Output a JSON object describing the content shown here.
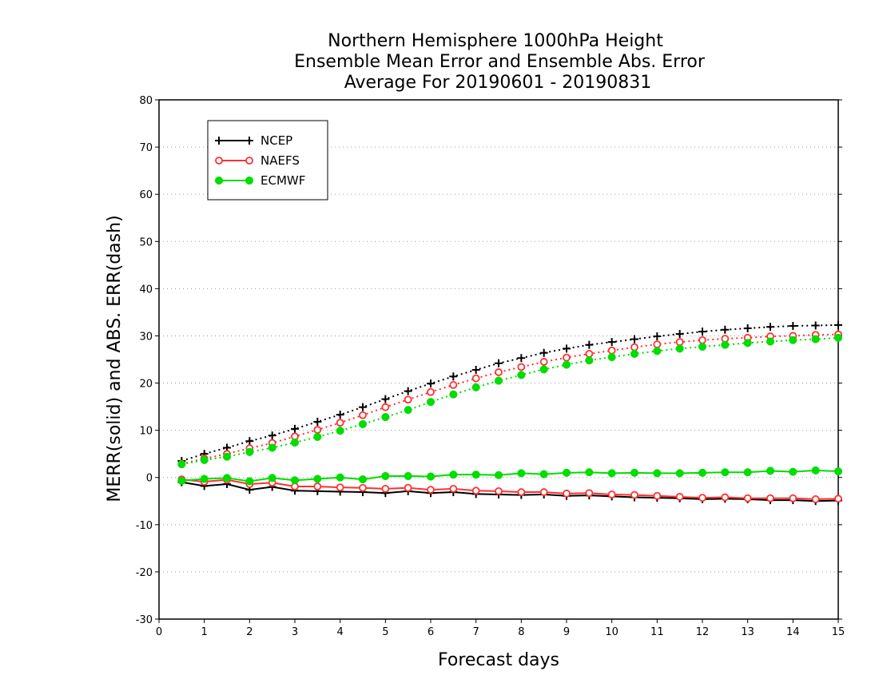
{
  "chart_data": {
    "type": "line",
    "title": [
      "Northern Hemisphere 1000hPa Height",
      "Ensemble Mean Error and Ensemble Abs. Error",
      "Average For 20190601 - 20190831"
    ],
    "xlabel": "Forecast days",
    "ylabel": "MERR(solid) and ABS. ERR(dash)",
    "xlim": [
      0,
      15
    ],
    "ylim": [
      -30,
      80
    ],
    "xticks": [
      0,
      1,
      2,
      3,
      4,
      5,
      6,
      7,
      8,
      9,
      10,
      11,
      12,
      13,
      14,
      15
    ],
    "yticks": [
      -30,
      -20,
      -10,
      0,
      10,
      20,
      30,
      40,
      50,
      60,
      70,
      80
    ],
    "grid": "horizontal dotted",
    "legend_position": "top-left",
    "x": [
      0.5,
      1,
      1.5,
      2,
      2.5,
      3,
      3.5,
      4,
      4.5,
      5,
      5.5,
      6,
      6.5,
      7,
      7.5,
      8,
      8.5,
      9,
      9.5,
      10,
      10.5,
      11,
      11.5,
      12,
      12.5,
      13,
      13.5,
      14,
      14.5,
      15
    ],
    "series": [
      {
        "name": "NCEP",
        "color": "#000000",
        "marker": "plus",
        "abs_err": [
          3.5,
          5.0,
          6.3,
          7.7,
          8.9,
          10.3,
          11.8,
          13.3,
          14.9,
          16.6,
          18.3,
          19.9,
          21.4,
          22.8,
          24.2,
          25.3,
          26.4,
          27.3,
          28.1,
          28.7,
          29.3,
          29.9,
          30.4,
          30.9,
          31.3,
          31.6,
          31.9,
          32.1,
          32.2,
          32.3
        ],
        "mean_err": [
          -1.0,
          -1.8,
          -1.4,
          -2.6,
          -2.0,
          -2.8,
          -2.9,
          -3.0,
          -3.1,
          -3.3,
          -2.9,
          -3.3,
          -3.1,
          -3.5,
          -3.6,
          -3.7,
          -3.6,
          -3.9,
          -3.8,
          -4.0,
          -4.2,
          -4.3,
          -4.4,
          -4.6,
          -4.5,
          -4.6,
          -4.8,
          -4.8,
          -5.0,
          -4.9
        ]
      },
      {
        "name": "NAEFS",
        "color": "#ff3030",
        "marker": "open-circle",
        "abs_err": [
          2.9,
          4.0,
          5.0,
          6.2,
          7.3,
          8.7,
          10.1,
          11.6,
          13.2,
          14.9,
          16.5,
          18.1,
          19.6,
          21.0,
          22.3,
          23.4,
          24.5,
          25.4,
          26.2,
          26.9,
          27.6,
          28.2,
          28.7,
          29.1,
          29.4,
          29.6,
          29.9,
          30.0,
          30.2,
          30.3
        ],
        "mean_err": [
          -0.4,
          -0.9,
          -0.5,
          -1.4,
          -1.1,
          -1.9,
          -1.9,
          -2.1,
          -2.2,
          -2.4,
          -2.2,
          -2.6,
          -2.4,
          -2.8,
          -2.9,
          -3.1,
          -3.1,
          -3.4,
          -3.3,
          -3.6,
          -3.7,
          -3.9,
          -4.1,
          -4.3,
          -4.2,
          -4.4,
          -4.4,
          -4.4,
          -4.6,
          -4.5
        ]
      },
      {
        "name": "ECMWF",
        "color": "#00dd00",
        "marker": "filled-circle",
        "abs_err": [
          2.8,
          3.7,
          4.4,
          5.4,
          6.3,
          7.4,
          8.6,
          9.9,
          11.3,
          12.8,
          14.3,
          16.0,
          17.6,
          19.1,
          20.5,
          21.7,
          22.9,
          23.9,
          24.8,
          25.5,
          26.2,
          26.8,
          27.3,
          27.7,
          28.1,
          28.5,
          28.8,
          29.1,
          29.3,
          29.6
        ],
        "mean_err": [
          -0.7,
          -0.3,
          -0.1,
          -0.8,
          -0.1,
          -0.6,
          -0.3,
          0.0,
          -0.4,
          0.3,
          0.3,
          0.2,
          0.6,
          0.6,
          0.5,
          0.9,
          0.7,
          1.0,
          1.1,
          0.9,
          1.0,
          0.9,
          0.9,
          1.0,
          1.1,
          1.1,
          1.4,
          1.2,
          1.5,
          1.3
        ]
      }
    ]
  }
}
